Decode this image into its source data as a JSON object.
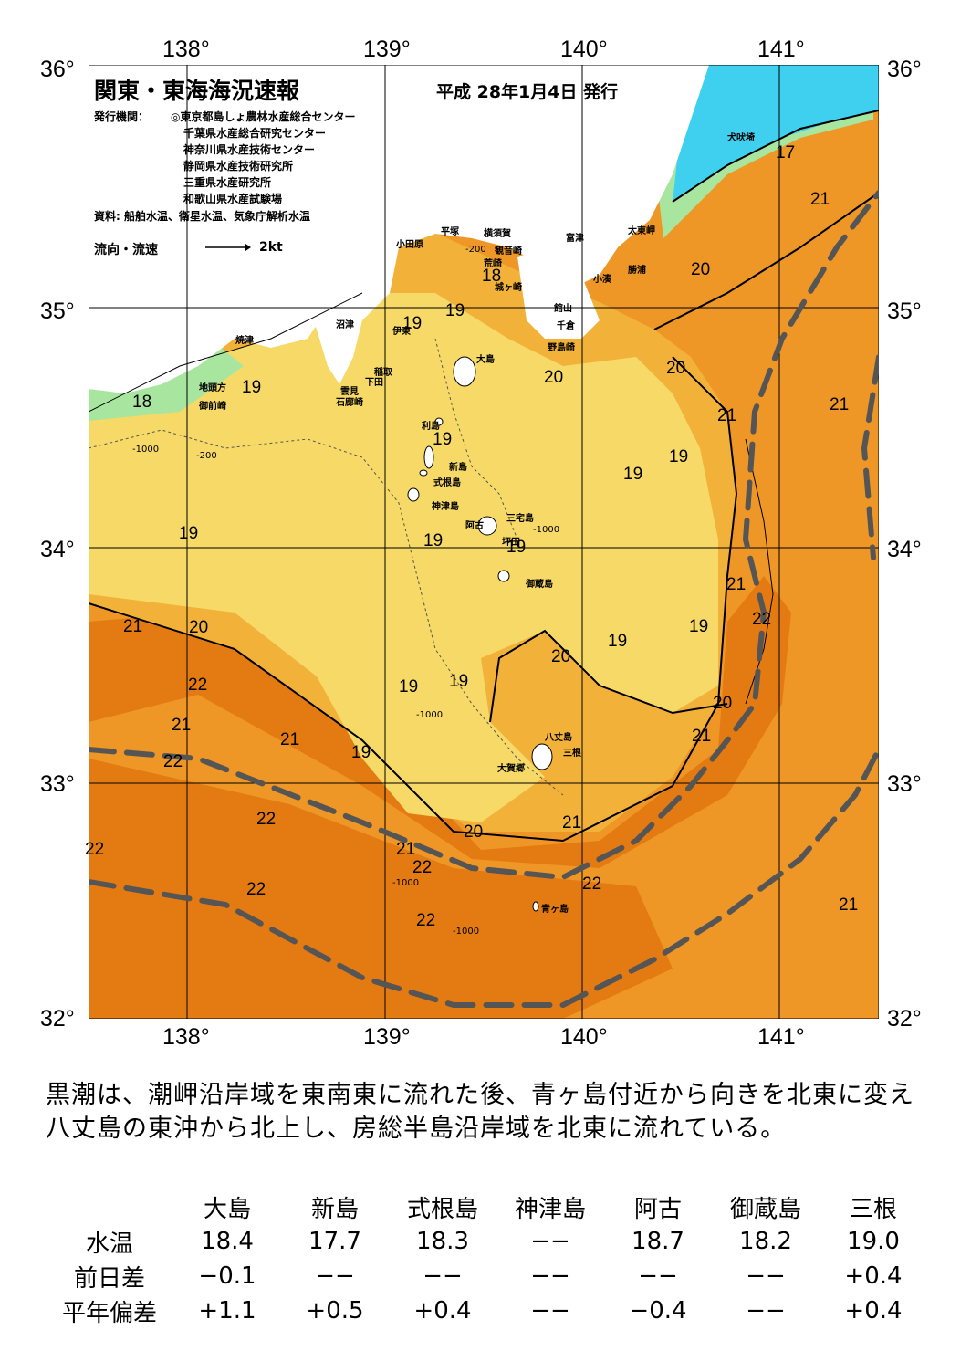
{
  "map": {
    "title": "関東・東海海況速報",
    "issued": "平成 28年1月4日 発行",
    "org_label": "発行機関：",
    "organizations": [
      "◎東京都島しょ農林水産総合センター",
      "千葉県水産総合研究センター",
      "神奈川県水産技術センター",
      "静岡県水産技術研究所",
      "三重県水産研究所",
      "和歌山県水産試験場"
    ],
    "source": "資料: 船舶水温、衛星水温、気象庁解析水温",
    "flow_label": "流向・流速",
    "flow_speed": "2kt",
    "lon_labels": [
      "138°",
      "139°",
      "140°",
      "141°"
    ],
    "lat_labels": [
      "36°",
      "35°",
      "34°",
      "33°",
      "32°"
    ],
    "places": {
      "inubosaki": "犬吠埼",
      "taitomisaki": "太東岬",
      "katsuura": "勝浦",
      "kominato": "小湊",
      "tomitsu": "富津",
      "yokosuka": "横須賀",
      "kannonzaki": "観音崎",
      "arasaki": "荒崎",
      "jogashima": "城ヶ崎",
      "hiratsuka": "平塚",
      "odawara": "小田原",
      "tateyama": "館山",
      "chikura": "千倉",
      "nojimazaki": "野島崎",
      "numazu": "沼津",
      "ito": "伊東",
      "inatori": "稲取",
      "shimoda": "下田",
      "kumomi": "雲見",
      "irozaki": "石廊崎",
      "yaizu": "焼津",
      "chitoukata": "地頭方",
      "omaezaki": "御前崎",
      "oshima": "大島",
      "toshima": "利島",
      "niijima": "新島",
      "shikinejima": "式根島",
      "kozushima": "神津島",
      "miyakejima": "三宅島",
      "ako": "阿古",
      "tsubota": "坪田",
      "mikurajima": "御蔵島",
      "hachijojima": "八丈島",
      "mitsune": "三根",
      "okago": "大賀郷",
      "aogashima": "青ヶ島"
    },
    "isotherm_labels": {
      "t17": "17",
      "t18": "18",
      "t19": "19",
      "t20": "20",
      "t21": "21",
      "t22": "22"
    },
    "depth_labels": {
      "d200": "-200",
      "d1000": "-1000"
    },
    "colors": {
      "land": "#ffffff",
      "sea17": "#3fd0f0",
      "sea18": "#a8e6a0",
      "sea19": "#f6d966",
      "sea20": "#f2b23a",
      "sea21": "#ee9626",
      "sea22": "#e37b12",
      "kuroshio_axis": "#555555"
    }
  },
  "description": "黒潮は、潮岬沿岸域を東南東に流れた後、青ヶ島付近から向きを北東に変え八丈島の東沖から北上し、房総半島沿岸域を北東に流れている。",
  "table": {
    "columns": [
      "大島",
      "新島",
      "式根島",
      "神津島",
      "阿古",
      "御蔵島",
      "三根"
    ],
    "rows": [
      {
        "label": "水温",
        "values": [
          "18.4",
          "17.7",
          "18.3",
          "−−",
          "18.7",
          "18.2",
          "19.0"
        ]
      },
      {
        "label": "前日差",
        "values": [
          "−0.1",
          "−−",
          "−−",
          "−−",
          "−−",
          "−−",
          "+0.4"
        ]
      },
      {
        "label": "平年偏差",
        "values": [
          "+1.1",
          "+0.5",
          "+0.4",
          "−−",
          "−0.4",
          "−−",
          "+0.4"
        ]
      }
    ]
  }
}
